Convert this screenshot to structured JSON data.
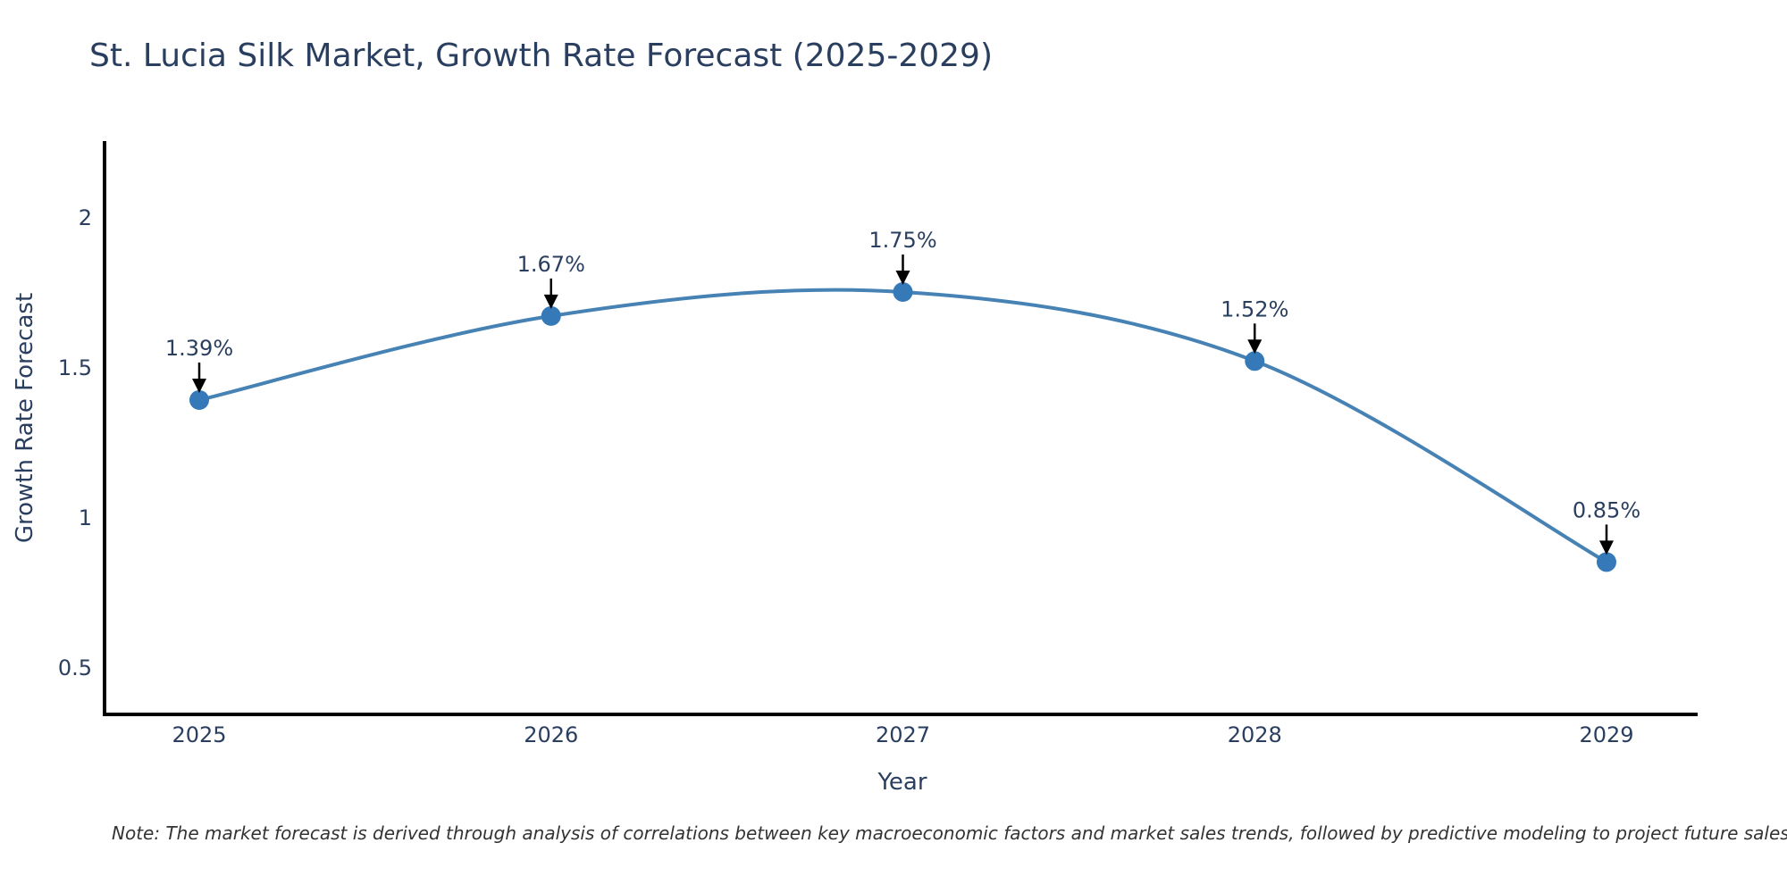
{
  "title": "St. Lucia Silk Market, Growth Rate Forecast (2025-2029)",
  "note": "Note: The market forecast is derived through analysis of correlations between key macroeconomic factors and market sales trends, followed by predictive modeling to project future sales",
  "chart_data": {
    "type": "line",
    "title": "St. Lucia Silk Market, Growth Rate Forecast (2025-2029)",
    "xlabel": "Year",
    "ylabel": "Growth Rate Forecast",
    "categories": [
      "2025",
      "2026",
      "2027",
      "2028",
      "2029"
    ],
    "x": [
      2025,
      2026,
      2027,
      2028,
      2029
    ],
    "values": [
      1.39,
      1.67,
      1.75,
      1.52,
      0.85
    ],
    "point_labels": [
      "1.39%",
      "1.67%",
      "1.75%",
      "1.52%",
      "0.85%"
    ],
    "ytick_values": [
      0.5,
      1,
      1.5,
      2
    ],
    "ytick_labels": [
      "0.5",
      "1",
      "1.5",
      "2"
    ],
    "ylim": [
      0.34,
      2.27
    ],
    "grid": false,
    "legend_position": "none",
    "line_shape": "spline",
    "colors": {
      "line": "#4682b4",
      "marker": "#3579b8",
      "axis": "#000000",
      "text": "#2a3f5f",
      "annotation_arrow": "#000000"
    }
  }
}
